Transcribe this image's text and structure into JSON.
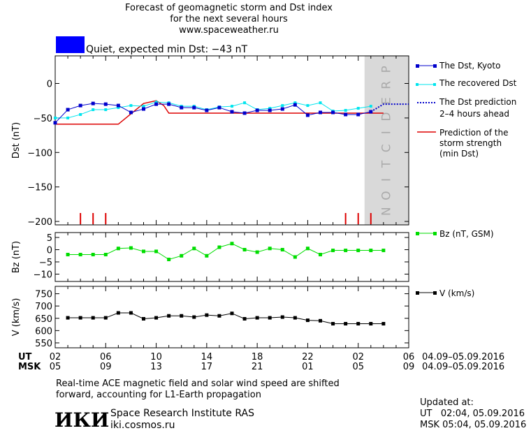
{
  "header": {
    "title_lines": [
      "Forecast of geomagnetic storm and Dst index",
      "for the next several hours",
      "www.spaceweather.ru"
    ],
    "status_text": "Quiet, expected min Dst: −43 nT",
    "status_color": "#0000ff"
  },
  "footer": {
    "note_lines": [
      "Real-time ACE magnetic field and solar wind speed are shifted",
      "forward, accounting for L1-Earth propagation"
    ],
    "logo_text": "ИКИ",
    "institute": "Space Research Institute RAS",
    "website": "iki.cosmos.ru",
    "updated_label": "Updated at:",
    "updated_ut": "UT   02:04, 05.09.2016",
    "updated_msk": "MSK 05:04, 05.09.2016"
  },
  "colors": {
    "dst_kyoto": "#0000cc",
    "dst_recovered": "#00e5ee",
    "dst_prediction": "#0000cc",
    "storm_strength": "#dd0000",
    "bz": "#00dd00",
    "v": "#000000",
    "prediction_band": "#d9d9d9",
    "prediction_text": "#aaaaaa"
  },
  "chart_data": [
    {
      "type": "line",
      "id": "dst",
      "ylabel": "Dst (nT)",
      "ylim": [
        -205,
        40
      ],
      "yticks": [
        0,
        -50,
        -100,
        -150,
        -200
      ],
      "ytick_labels": [
        "0",
        "−50",
        "−100",
        "−150",
        "−200"
      ],
      "xlim": [
        0,
        28
      ],
      "prediction_band": [
        24.5,
        28
      ],
      "prediction_label": "PREDICTION",
      "series": [
        {
          "name": "The Dst, Kyoto",
          "x": [
            0,
            1,
            2,
            3,
            4,
            5,
            6,
            7,
            8,
            9,
            10,
            11,
            12,
            13,
            14,
            15,
            16,
            17,
            18,
            19,
            20,
            21,
            22,
            23,
            24,
            25
          ],
          "y": [
            -57,
            -38,
            -32,
            -29,
            -30,
            -32,
            -42,
            -37,
            -30,
            -30,
            -35,
            -35,
            -39,
            -35,
            -41,
            -43,
            -39,
            -39,
            -37,
            -31,
            -46,
            -42,
            -42,
            -45,
            -45,
            -41
          ]
        },
        {
          "name": "The recovered Dst",
          "x": [
            0,
            1,
            2,
            3,
            4,
            5,
            6,
            7,
            8,
            9,
            10,
            11,
            12,
            13,
            14,
            15,
            16,
            17,
            18,
            19,
            20,
            21,
            22,
            23,
            24,
            25
          ],
          "y": [
            -50,
            -50,
            -45,
            -38,
            -38,
            -35,
            -32,
            -33,
            -27,
            -28,
            -33,
            -33,
            -38,
            -34,
            -33,
            -28,
            -38,
            -36,
            -32,
            -28,
            -32,
            -28,
            -40,
            -39,
            -36,
            -33
          ]
        },
        {
          "name": "The Dst prediction 2–4 hours ahead",
          "x": [
            25,
            26,
            27,
            28
          ],
          "y": [
            -41,
            -30,
            -30,
            -30
          ]
        },
        {
          "name": "Prediction of the storm strength (min Dst)",
          "x": [
            0,
            5,
            7,
            8,
            8.6,
            9,
            26
          ],
          "y": [
            -59,
            -59,
            -29,
            -25,
            -32,
            -43,
            -43
          ]
        }
      ],
      "markers": [
        2,
        3,
        4,
        23,
        24,
        25
      ],
      "legend_text": [
        "The Dst, Kyoto",
        "The recovered Dst",
        "The Dst prediction",
        "2–4 hours ahead",
        "Prediction of the",
        "storm strength",
        "(min Dst)"
      ]
    },
    {
      "type": "line",
      "id": "bz",
      "ylabel": "Bz (nT)",
      "ylim": [
        -13,
        7
      ],
      "yticks": [
        5,
        0,
        -5,
        -10
      ],
      "ytick_labels": [
        "5",
        "0",
        "−5",
        "−10"
      ],
      "xlim": [
        0,
        28
      ],
      "series": [
        {
          "name": "Bz (nT, GSM)",
          "x": [
            1,
            2,
            3,
            4,
            5,
            6,
            7,
            8,
            9,
            10,
            11,
            12,
            13,
            14,
            15,
            16,
            17,
            18,
            19,
            20,
            21,
            22,
            23,
            24,
            25,
            26
          ],
          "y": [
            -2,
            -2,
            -2,
            -2,
            0.5,
            0.7,
            -0.7,
            -0.7,
            -4,
            -2.5,
            0.5,
            -2.5,
            1,
            2.5,
            0,
            -1,
            0.5,
            0,
            -3,
            0.5,
            -2,
            -0.3,
            -0.3,
            -0.3,
            -0.3,
            -0.3
          ]
        }
      ],
      "legend_text": [
        "Bz (nT, GSM)"
      ]
    },
    {
      "type": "line",
      "id": "v",
      "ylabel": "V (km/s)",
      "ylim": [
        530,
        780
      ],
      "yticks": [
        750,
        700,
        650,
        600,
        550
      ],
      "ytick_labels": [
        "750",
        "700",
        "650",
        "600",
        "550"
      ],
      "xlim": [
        0,
        28
      ],
      "series": [
        {
          "name": "V (km/s)",
          "x": [
            1,
            2,
            3,
            4,
            5,
            6,
            7,
            8,
            9,
            10,
            11,
            12,
            13,
            14,
            15,
            16,
            17,
            18,
            19,
            20,
            21,
            22,
            23,
            24,
            25,
            26
          ],
          "y": [
            652,
            652,
            652,
            652,
            672,
            672,
            648,
            652,
            660,
            660,
            655,
            663,
            660,
            670,
            648,
            652,
            652,
            655,
            652,
            642,
            640,
            628,
            628,
            628,
            628,
            628
          ]
        }
      ],
      "legend_text": [
        "V (km/s)"
      ]
    }
  ],
  "x_axis": {
    "ut_label": "UT",
    "msk_label": "MSK",
    "positions": [
      0,
      4,
      8,
      12,
      16,
      20,
      24,
      28
    ],
    "ut_ticks": [
      "02",
      "06",
      "10",
      "14",
      "18",
      "22",
      "02",
      "06"
    ],
    "msk_ticks": [
      "05",
      "09",
      "13",
      "17",
      "21",
      "01",
      "05",
      "09"
    ],
    "ut_range": "04.09–05.09.2016",
    "msk_range": "04.09–05.09.2016"
  }
}
